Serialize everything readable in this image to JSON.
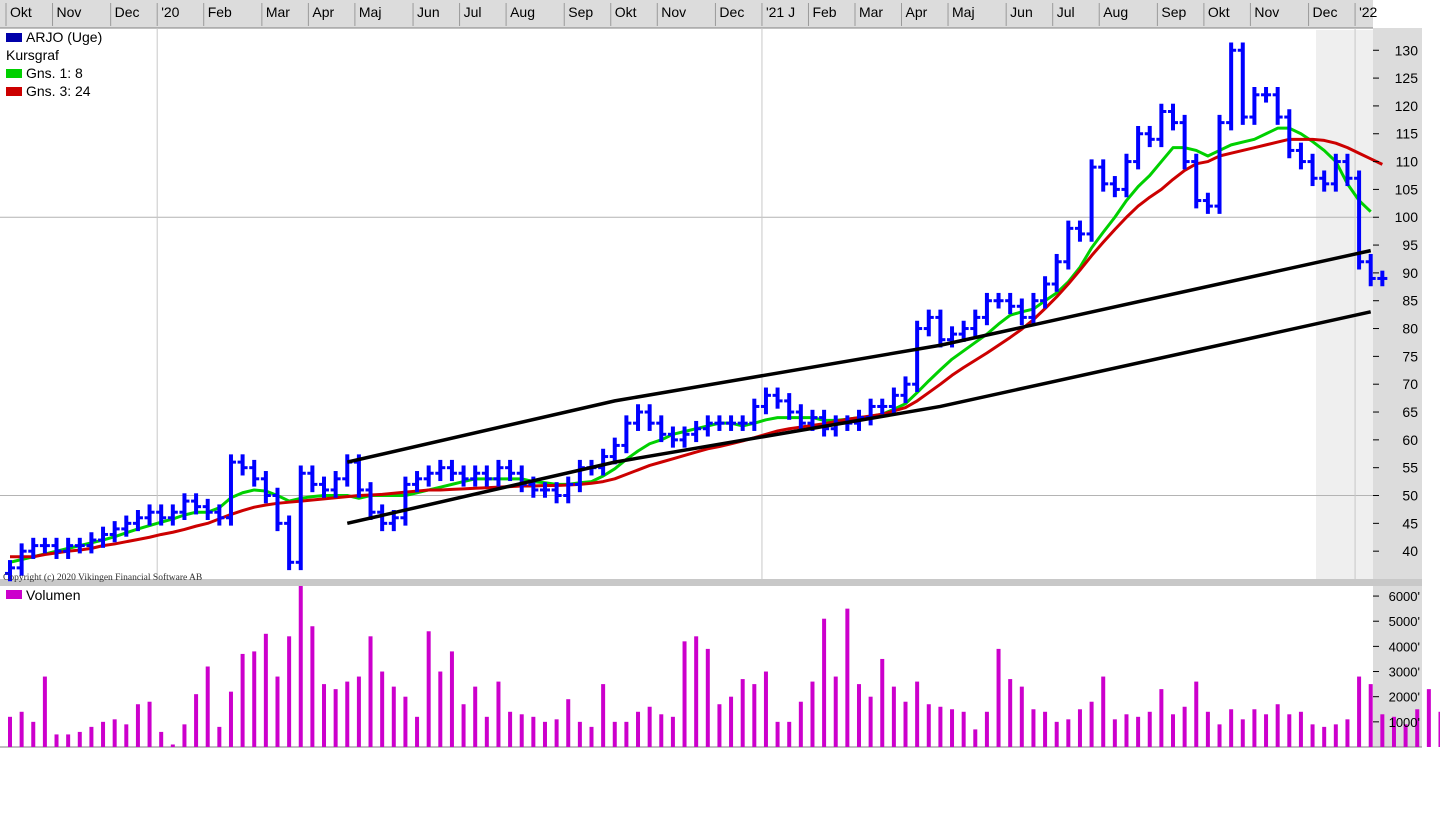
{
  "chart_data": [
    {
      "type": "ohlc",
      "title": "ARJO (Uge)",
      "subtitle": "Kursgraf",
      "legend_position": "top-left",
      "copyright": "Copyright (c) 2020 Vikingen Financial Software AB",
      "time_axis": [
        {
          "label": "Okt",
          "week": 0
        },
        {
          "label": "Nov",
          "week": 4
        },
        {
          "label": "Dec",
          "week": 9
        },
        {
          "label": "'20",
          "week": 13
        },
        {
          "label": "Feb",
          "week": 17
        },
        {
          "label": "Mar",
          "week": 22
        },
        {
          "label": "Apr",
          "week": 26
        },
        {
          "label": "Maj",
          "week": 30
        },
        {
          "label": "Jun",
          "week": 35
        },
        {
          "label": "Jul",
          "week": 39
        },
        {
          "label": "Aug",
          "week": 43
        },
        {
          "label": "Sep",
          "week": 48
        },
        {
          "label": "Okt",
          "week": 52
        },
        {
          "label": "Nov",
          "week": 56
        },
        {
          "label": "Dec",
          "week": 61
        },
        {
          "label": "'21 J",
          "week": 65
        },
        {
          "label": "Feb",
          "week": 69
        },
        {
          "label": "Mar",
          "week": 73
        },
        {
          "label": "Apr",
          "week": 77
        },
        {
          "label": "Maj",
          "week": 81
        },
        {
          "label": "Jun",
          "week": 86
        },
        {
          "label": "Jul",
          "week": 90
        },
        {
          "label": "Aug",
          "week": 94
        },
        {
          "label": "Sep",
          "week": 99
        },
        {
          "label": "Okt",
          "week": 103
        },
        {
          "label": "Nov",
          "week": 107
        },
        {
          "label": "Dec",
          "week": 112
        },
        {
          "label": "'22",
          "week": 116
        }
      ],
      "year_separators_week": [
        13,
        65,
        116
      ],
      "y_ticks": [
        40,
        45,
        50,
        55,
        60,
        65,
        70,
        75,
        80,
        85,
        90,
        95,
        100,
        105,
        110,
        115,
        120,
        125,
        130
      ],
      "ylim": [
        35,
        134
      ],
      "horizontal_grid": [
        50,
        100
      ],
      "price_series": {
        "name": "ARJO (Uge)",
        "color": "#0000ff",
        "values": [
          37,
          40,
          41,
          41,
          40,
          41,
          41,
          42,
          43,
          44,
          45,
          46,
          47,
          46,
          47,
          49,
          48,
          47,
          46,
          56,
          55,
          53,
          50,
          45,
          38,
          54,
          52,
          51,
          53,
          56,
          51,
          47,
          45,
          46,
          52,
          53,
          54,
          55,
          54,
          53,
          54,
          53,
          55,
          54,
          52,
          51,
          51,
          50,
          52,
          55,
          55,
          57,
          59,
          63,
          65,
          63,
          61,
          60,
          61,
          62,
          63,
          63,
          63,
          63,
          66,
          68,
          67,
          65,
          63,
          64,
          62,
          63,
          63,
          64,
          66,
          66,
          68,
          70,
          80,
          82,
          78,
          79,
          80,
          82,
          85,
          85,
          84,
          82,
          85,
          88,
          92,
          98,
          97,
          109,
          106,
          105,
          110,
          115,
          114,
          119,
          117,
          110,
          103,
          102,
          117,
          130,
          118,
          122,
          122,
          118,
          112,
          110,
          107,
          106,
          110,
          107,
          92,
          89,
          89
        ]
      },
      "series": [
        {
          "name": "Gns. 1: 8",
          "color": "#00d000",
          "values": [
            38,
            38.5,
            39,
            39.5,
            40,
            40.5,
            41,
            41.5,
            42,
            42.6,
            43.3,
            44,
            44.6,
            45.2,
            45.8,
            46.5,
            47,
            47,
            47.8,
            49.6,
            50.5,
            51,
            50.8,
            50,
            49,
            49.5,
            49.8,
            50,
            50,
            50,
            49.5,
            50,
            50,
            50,
            50,
            50.5,
            51,
            51.5,
            52,
            52.5,
            53,
            53,
            53,
            53,
            53,
            52.5,
            52.3,
            52,
            52,
            52.3,
            52.5,
            53.5,
            54.8,
            56.5,
            58,
            59.3,
            60,
            61,
            61.5,
            62,
            62.5,
            63,
            63,
            62.5,
            63,
            63.6,
            64,
            64,
            64,
            64,
            63.5,
            63.5,
            63.7,
            64,
            64.2,
            64.6,
            65.5,
            66.5,
            68.5,
            70.6,
            72.6,
            74.5,
            76,
            77.5,
            79,
            80.8,
            82.4,
            83,
            83.5,
            85,
            86.4,
            88.4,
            91,
            94.5,
            97.3,
            100,
            103,
            105.5,
            107.5,
            110,
            112.5,
            112.5,
            112,
            111,
            112,
            113,
            113.5,
            114,
            115,
            116,
            116,
            115,
            113.6,
            112,
            110,
            106,
            103,
            101
          ]
        },
        {
          "name": "Gns. 3: 24",
          "color": "#cc0000",
          "values": [
            39,
            39,
            39,
            39.4,
            39.7,
            40,
            40.2,
            40.5,
            41,
            41.3,
            41.7,
            42.1,
            42.5,
            43,
            43.4,
            43.9,
            44.5,
            45,
            45.8,
            46.6,
            47.3,
            47.9,
            48.3,
            48.6,
            48.8,
            49,
            49.2,
            49.4,
            49.6,
            49.8,
            50,
            50.1,
            50.2,
            50.4,
            50.6,
            50.8,
            51,
            51,
            51.1,
            51.2,
            51.3,
            51.4,
            51.5,
            51.6,
            51.7,
            51.7,
            51.8,
            51.8,
            51.9,
            52,
            52.2,
            52.5,
            53,
            53.8,
            54.6,
            55.4,
            56,
            56.6,
            57.2,
            57.8,
            58.4,
            58.8,
            59.3,
            59.8,
            60.4,
            61,
            61.6,
            62,
            62.3,
            62.6,
            62.9,
            63.3,
            63.7,
            64,
            64.3,
            64.6,
            65.2,
            65.8,
            67,
            68.5,
            70,
            71.6,
            73,
            74.3,
            75.6,
            77,
            78.4,
            79.9,
            81.6,
            83.6,
            85.7,
            88,
            90.5,
            93.1,
            95.5,
            97.8,
            100,
            102,
            103.6,
            105,
            106.8,
            108.4,
            109.6,
            110,
            111,
            111.5,
            112,
            112.5,
            113,
            113.5,
            114,
            114,
            114,
            113.8,
            113.3,
            112.5,
            111.5,
            110.5,
            109.5
          ]
        }
      ],
      "trendlines": [
        {
          "points": [
            {
              "week": 29,
              "value": 56
            },
            {
              "week": 52,
              "value": 67
            },
            {
              "week": 80,
              "value": 77
            },
            {
              "week": 117,
              "value": 94
            }
          ]
        },
        {
          "points": [
            {
              "week": 29,
              "value": 45
            },
            {
              "week": 52,
              "value": 56
            },
            {
              "week": 80,
              "value": 66
            },
            {
              "week": 117,
              "value": 83
            }
          ]
        }
      ]
    },
    {
      "type": "bar",
      "title": "Volumen",
      "color": "#cc00cc",
      "y_ticks": [
        1000,
        2000,
        3000,
        4000,
        5000,
        6000
      ],
      "y_tick_labels": [
        "1000'",
        "2000'",
        "3000'",
        "4000'",
        "5000'",
        "6000'"
      ],
      "ylim": [
        0,
        6400
      ],
      "values": [
        1200,
        1400,
        1000,
        2800,
        500,
        500,
        600,
        800,
        1000,
        1100,
        900,
        1700,
        1800,
        600,
        100,
        900,
        2100,
        3200,
        800,
        2200,
        3700,
        3800,
        4500,
        2800,
        4400,
        6400,
        4800,
        2500,
        2300,
        2600,
        2800,
        4400,
        3000,
        2400,
        2000,
        1200,
        4600,
        3000,
        3800,
        1700,
        2400,
        1200,
        2600,
        1400,
        1300,
        1200,
        1000,
        1100,
        1900,
        1000,
        800,
        2500,
        1000,
        1000,
        1400,
        1600,
        1300,
        1200,
        4200,
        4400,
        3900,
        1700,
        2000,
        2700,
        2500,
        3000,
        1000,
        1000,
        1800,
        2600,
        5100,
        2800,
        5500,
        2500,
        2000,
        3500,
        2400,
        1800,
        2600,
        1700,
        1600,
        1500,
        1400,
        700,
        1400,
        3900,
        2700,
        2400,
        1500,
        1400,
        1000,
        1100,
        1500,
        1800,
        2800,
        1100,
        1300,
        1200,
        1400,
        2300,
        1300,
        1600,
        2600,
        1400,
        900,
        1500,
        1100,
        1500,
        1300,
        1700,
        1300,
        1400,
        900,
        800,
        900,
        1100,
        2800,
        2500,
        1300,
        1200,
        900,
        1500,
        2300,
        1400,
        800,
        200,
        400,
        1600,
        1800,
        2000
      ]
    }
  ],
  "legend": {
    "items": [
      {
        "label": "ARJO (Uge)",
        "color": "#0000aa"
      },
      {
        "label": "Kursgraf",
        "color": ""
      },
      {
        "label": "Gns. 1: 8",
        "color": "#00d000"
      },
      {
        "label": "Gns. 3: 24",
        "color": "#cc0000"
      }
    ],
    "volume_label": "Volumen",
    "volume_color": "#cc00cc"
  }
}
